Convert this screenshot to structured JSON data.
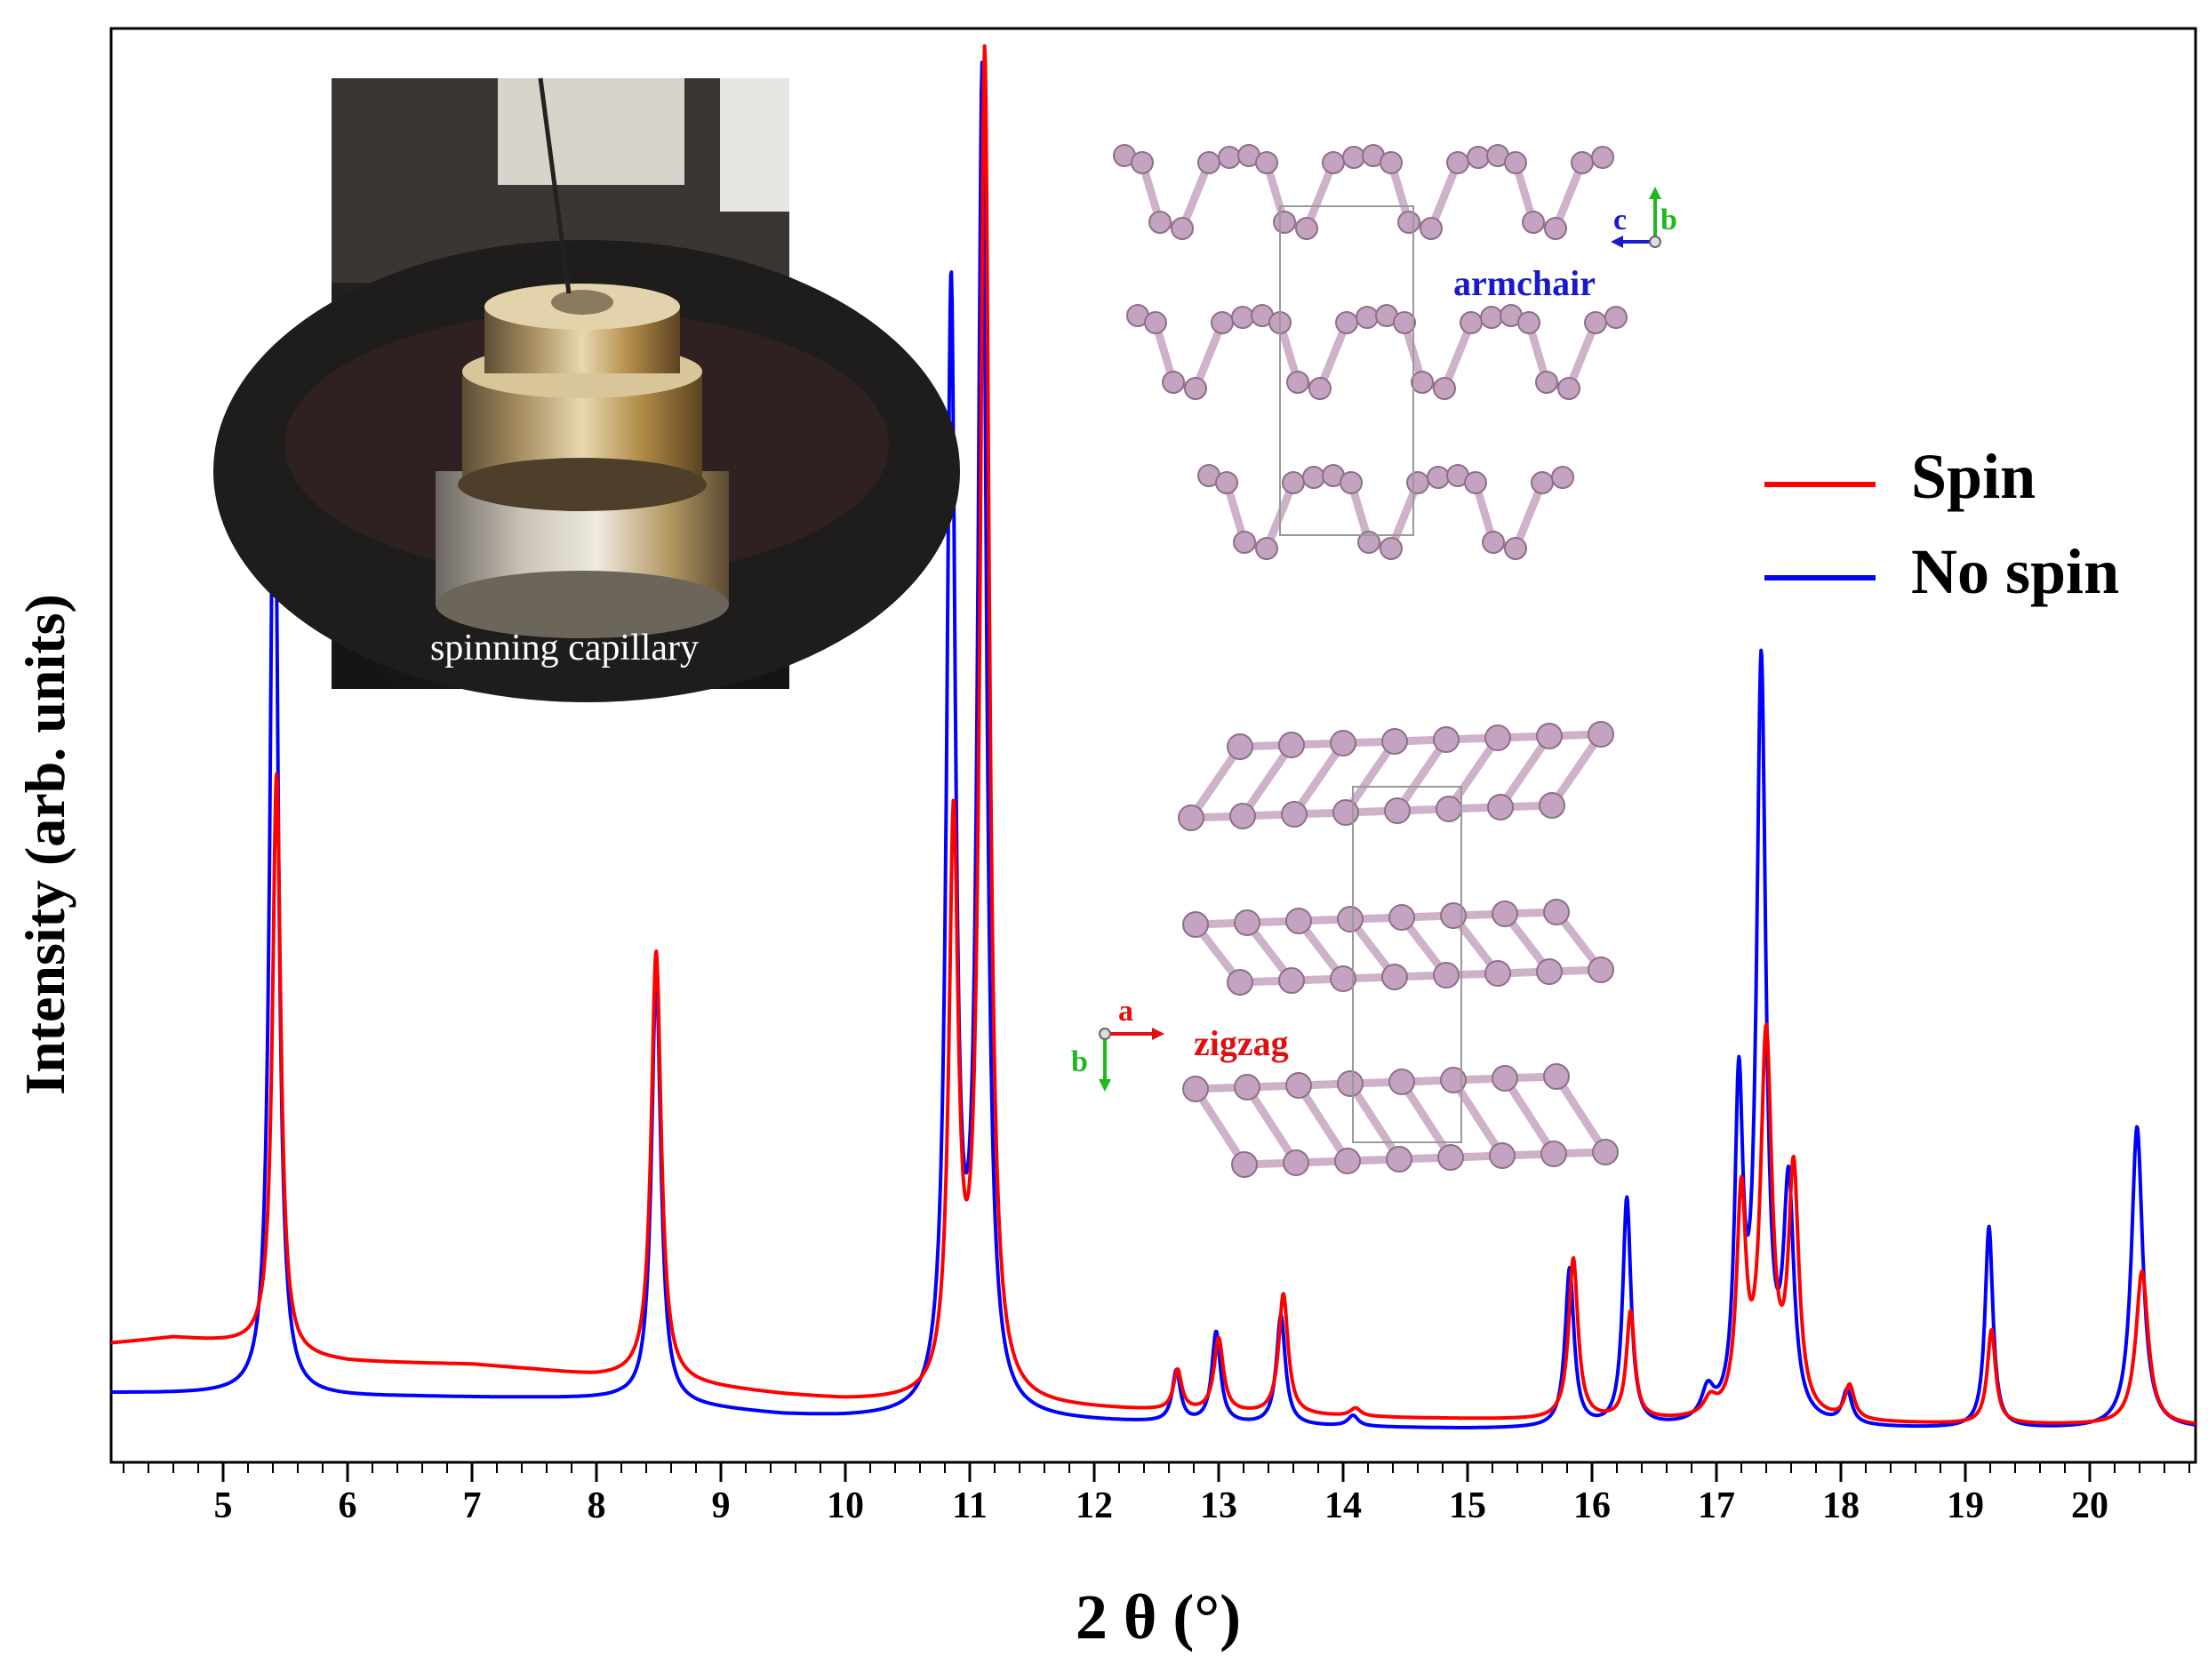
{
  "chart_data": {
    "type": "line",
    "xlabel": "2 θ (°)",
    "ylabel": "Intensity (arb. units)",
    "xlim": [
      4.1,
      20.85
    ],
    "ylim": [
      0,
      1.02
    ],
    "x_ticks": [
      "5",
      "6",
      "7",
      "8",
      "9",
      "10",
      "11",
      "12",
      "13",
      "14",
      "15",
      "16",
      "17",
      "18",
      "19",
      "20"
    ],
    "y_ticks_shown": false,
    "grid": false,
    "legend": {
      "placement": "right",
      "entries": [
        "Spin",
        "No spin"
      ]
    },
    "series": [
      {
        "name": "Spin",
        "color": "#ff0000",
        "baseline": [
          [
            4.1,
            0.072
          ],
          [
            4.6,
            0.076
          ],
          [
            5.3,
            0.07
          ],
          [
            5.6,
            0.061
          ],
          [
            6.0,
            0.058
          ],
          [
            7.0,
            0.056
          ],
          [
            7.5,
            0.052
          ],
          [
            8.0,
            0.047
          ],
          [
            8.3,
            0.046
          ],
          [
            8.8,
            0.04
          ],
          [
            9.5,
            0.033
          ],
          [
            10.0,
            0.029
          ],
          [
            10.6,
            0.027
          ],
          [
            11.5,
            0.024
          ],
          [
            12.5,
            0.021
          ],
          [
            13.5,
            0.018
          ],
          [
            14.5,
            0.016
          ],
          [
            16.0,
            0.014
          ],
          [
            18.0,
            0.012
          ],
          [
            20.0,
            0.011
          ],
          [
            20.85,
            0.01
          ]
        ],
        "peaks": [
          {
            "x": 5.43,
            "height": 0.43,
            "width": 0.04
          },
          {
            "x": 8.48,
            "height": 0.32,
            "width": 0.048
          },
          {
            "x": 10.87,
            "height": 0.42,
            "width": 0.045
          },
          {
            "x": 11.12,
            "height": 1.0,
            "width": 0.045
          },
          {
            "x": 12.67,
            "height": 0.03,
            "width": 0.04
          },
          {
            "x": 13.0,
            "height": 0.055,
            "width": 0.045
          },
          {
            "x": 13.52,
            "height": 0.09,
            "width": 0.045
          },
          {
            "x": 14.1,
            "height": 0.006,
            "width": 0.05
          },
          {
            "x": 15.85,
            "height": 0.12,
            "width": 0.045
          },
          {
            "x": 16.31,
            "height": 0.08,
            "width": 0.04
          },
          {
            "x": 16.95,
            "height": 0.012,
            "width": 0.06
          },
          {
            "x": 17.2,
            "height": 0.16,
            "width": 0.045
          },
          {
            "x": 17.4,
            "height": 0.28,
            "width": 0.055
          },
          {
            "x": 17.62,
            "height": 0.18,
            "width": 0.05
          },
          {
            "x": 18.07,
            "height": 0.025,
            "width": 0.045
          },
          {
            "x": 19.21,
            "height": 0.07,
            "width": 0.04
          },
          {
            "x": 20.42,
            "height": 0.115,
            "width": 0.06
          }
        ]
      },
      {
        "name": "No spin",
        "color": "#0000ff",
        "baseline": [
          [
            4.1,
            0.035
          ],
          [
            5.0,
            0.034
          ],
          [
            5.6,
            0.032
          ],
          [
            6.5,
            0.032
          ],
          [
            7.5,
            0.031
          ],
          [
            8.2,
            0.03
          ],
          [
            8.8,
            0.024
          ],
          [
            9.5,
            0.018
          ],
          [
            10.0,
            0.016
          ],
          [
            10.6,
            0.015
          ],
          [
            11.5,
            0.014
          ],
          [
            12.5,
            0.012
          ],
          [
            13.5,
            0.01
          ],
          [
            15.0,
            0.008
          ],
          [
            16.0,
            0.008
          ],
          [
            18.0,
            0.008
          ],
          [
            20.0,
            0.008
          ],
          [
            20.85,
            0.008
          ]
        ],
        "peaks": [
          {
            "x": 5.41,
            "height": 0.78,
            "width": 0.038
          },
          {
            "x": 8.48,
            "height": 0.32,
            "width": 0.045
          },
          {
            "x": 10.85,
            "height": 0.83,
            "width": 0.042
          },
          {
            "x": 11.1,
            "height": 0.99,
            "width": 0.042
          },
          {
            "x": 12.66,
            "height": 0.038,
            "width": 0.04
          },
          {
            "x": 12.98,
            "height": 0.068,
            "width": 0.042
          },
          {
            "x": 13.5,
            "height": 0.082,
            "width": 0.043
          },
          {
            "x": 14.08,
            "height": 0.008,
            "width": 0.05
          },
          {
            "x": 15.82,
            "height": 0.118,
            "width": 0.043
          },
          {
            "x": 16.28,
            "height": 0.17,
            "width": 0.04
          },
          {
            "x": 16.93,
            "height": 0.022,
            "width": 0.06
          },
          {
            "x": 17.18,
            "height": 0.24,
            "width": 0.04
          },
          {
            "x": 17.36,
            "height": 0.56,
            "width": 0.045
          },
          {
            "x": 17.58,
            "height": 0.17,
            "width": 0.05
          },
          {
            "x": 18.05,
            "height": 0.025,
            "width": 0.045
          },
          {
            "x": 19.19,
            "height": 0.15,
            "width": 0.038
          },
          {
            "x": 20.38,
            "height": 0.225,
            "width": 0.055
          }
        ]
      }
    ]
  },
  "inset_photo": {
    "caption": "spinning capillary"
  },
  "structure_top": {
    "label": "armchair",
    "axis_c": "c",
    "axis_b": "b"
  },
  "structure_bottom": {
    "label": "zigzag",
    "axis_a": "a",
    "axis_b": "b"
  },
  "colors": {
    "spin": "#ff0000",
    "no_spin": "#0000ff",
    "atom": "#c4a3c0",
    "bond": "#cdb2ca",
    "axis_c": "#1a1acc",
    "axis_b": "#1fb81f",
    "axis_a": "#e01010"
  }
}
